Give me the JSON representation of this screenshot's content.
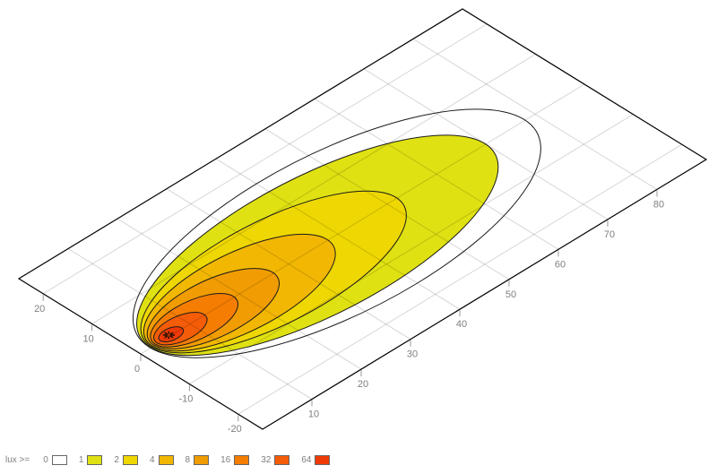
{
  "page": {
    "background": "#ffffff"
  },
  "chart_data": {
    "type": "contour",
    "title": "",
    "description": "Isolux contour map of a lamp beam projected on a ground plane, drawn in oblique 3D projection",
    "plane": {
      "x_range": [
        0,
        90
      ],
      "y_range": [
        -25,
        25
      ],
      "fill": "#ffffff",
      "border_color": "#000000"
    },
    "projection_matrix": [
      5.5,
      -3.3444,
      -5.44,
      -3.36,
      157,
      395
    ],
    "x_axis": {
      "ticks": [
        "10",
        "20",
        "30",
        "40",
        "50",
        "60",
        "70",
        "80"
      ]
    },
    "y_axis": {
      "ticks": [
        "20",
        "10",
        "0",
        "-10",
        "-20"
      ]
    },
    "grid": {
      "x_lines": [
        10,
        20,
        30,
        40,
        50,
        60,
        70,
        80
      ],
      "y_lines": [
        -20,
        -10,
        0,
        10,
        20
      ],
      "color": "rgba(0,0,0,0.16)"
    },
    "beam_axis_y": 0.2,
    "isolux_contours": [
      {
        "lux": "0",
        "x_near": 2.0,
        "x_far": 78,
        "half_width": 16.5,
        "color": "#ffffff"
      },
      {
        "lux": "1",
        "x_near": 2.1,
        "x_far": 70,
        "half_width": 14.0,
        "color": "#dfe112"
      },
      {
        "lux": "2",
        "x_near": 2.3,
        "x_far": 52,
        "half_width": 10.5,
        "color": "#eed702"
      },
      {
        "lux": "4",
        "x_near": 2.5,
        "x_far": 38,
        "half_width": 8.0,
        "color": "#f2b702"
      },
      {
        "lux": "8",
        "x_near": 2.8,
        "x_far": 27,
        "half_width": 5.8,
        "color": "#f09c02"
      },
      {
        "lux": "16",
        "x_near": 3.1,
        "x_far": 19,
        "half_width": 4.0,
        "color": "#f47d02"
      },
      {
        "lux": "32",
        "x_near": 3.5,
        "x_far": 13,
        "half_width": 2.6,
        "color": "#f45c08"
      },
      {
        "lux": "64",
        "x_near": 4.2,
        "x_far": 8.5,
        "half_width": 1.3,
        "color": "#ef3a08"
      }
    ],
    "contour_line_color": "#1a1a1a",
    "source_marker": {
      "x": 6,
      "y": 0.3,
      "symbol": "asterisk",
      "color": "#2a1200",
      "center_color": "#b03000"
    },
    "ticks_style": {
      "length": 7,
      "color": "#999999",
      "label_color": "#7f7f7f"
    },
    "legend": {
      "prefix": "lux >=",
      "position": "bottom-left",
      "entries": [
        {
          "label": "0",
          "color": "#ffffff"
        },
        {
          "label": "1",
          "color": "#dfe112"
        },
        {
          "label": "2",
          "color": "#eed702"
        },
        {
          "label": "4",
          "color": "#f2b702"
        },
        {
          "label": "8",
          "color": "#f09c02"
        },
        {
          "label": "16",
          "color": "#f47d02"
        },
        {
          "label": "32",
          "color": "#f45c08"
        },
        {
          "label": "64",
          "color": "#ef3a08"
        }
      ]
    }
  }
}
